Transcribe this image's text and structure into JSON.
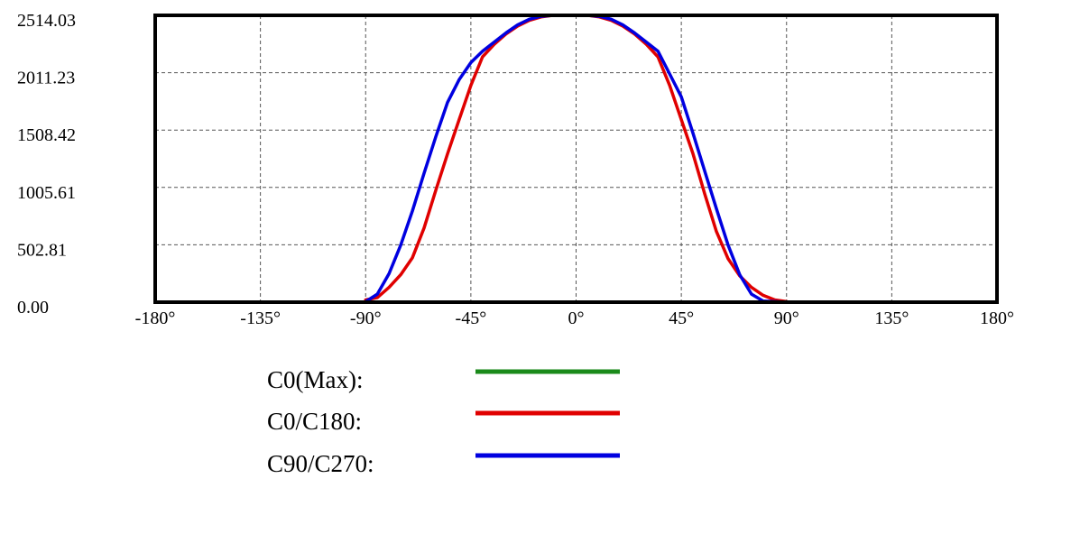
{
  "chart_data": {
    "type": "line",
    "title": "",
    "xlabel": "",
    "ylabel": "",
    "xlim": [
      -180,
      180
    ],
    "ylim": [
      0,
      2514.03
    ],
    "grid": true,
    "legend_placement": "bottom",
    "x_ticks": [
      -180,
      -135,
      -90,
      -45,
      0,
      45,
      90,
      135,
      180
    ],
    "x_tick_labels": [
      "-180°",
      "-135°",
      "-90°",
      "-45°",
      "0°",
      "45°",
      "90°",
      "135°",
      "180°"
    ],
    "y_ticks": [
      0,
      502.81,
      1005.61,
      1508.42,
      2011.23,
      2514.03
    ],
    "y_tick_labels": [
      "0.00",
      "502.81",
      "1005.61",
      "1508.42",
      "2011.23",
      "2514.03"
    ],
    "series": [
      {
        "name": "C0(Max):",
        "color": "#1a8a1a",
        "x": [],
        "y": []
      },
      {
        "name": "C0/C180:",
        "color": "#e00000",
        "x": [
          -90,
          -85,
          -80,
          -75,
          -70,
          -65,
          -60,
          -55,
          -50,
          -45,
          -40,
          -35,
          -30,
          -25,
          -20,
          -15,
          -10,
          -5,
          0,
          5,
          10,
          15,
          20,
          25,
          30,
          35,
          40,
          45,
          50,
          55,
          60,
          65,
          70,
          75,
          80,
          85,
          90
        ],
        "y": [
          20,
          40,
          130,
          240,
          390,
          650,
          980,
          1300,
          1600,
          1900,
          2150,
          2260,
          2350,
          2420,
          2470,
          2500,
          2514,
          2514,
          2514,
          2514,
          2500,
          2470,
          2420,
          2350,
          2260,
          2150,
          1900,
          1600,
          1300,
          950,
          620,
          380,
          230,
          130,
          60,
          20,
          5
        ]
      },
      {
        "name": "C90/C270:",
        "color": "#0000e0",
        "x": [
          -90,
          -85,
          -80,
          -75,
          -70,
          -65,
          -60,
          -55,
          -50,
          -45,
          -40,
          -35,
          -30,
          -25,
          -20,
          -15,
          -10,
          -5,
          0,
          5,
          10,
          15,
          20,
          25,
          30,
          35,
          40,
          45,
          50,
          55,
          60,
          65,
          70,
          75,
          80,
          85,
          90
        ],
        "y": [
          5,
          70,
          250,
          500,
          800,
          1130,
          1450,
          1750,
          1950,
          2100,
          2200,
          2280,
          2360,
          2430,
          2480,
          2505,
          2514,
          2514,
          2514,
          2514,
          2505,
          2480,
          2430,
          2360,
          2280,
          2200,
          2000,
          1800,
          1480,
          1150,
          820,
          500,
          240,
          70,
          10,
          5,
          0
        ]
      }
    ]
  }
}
